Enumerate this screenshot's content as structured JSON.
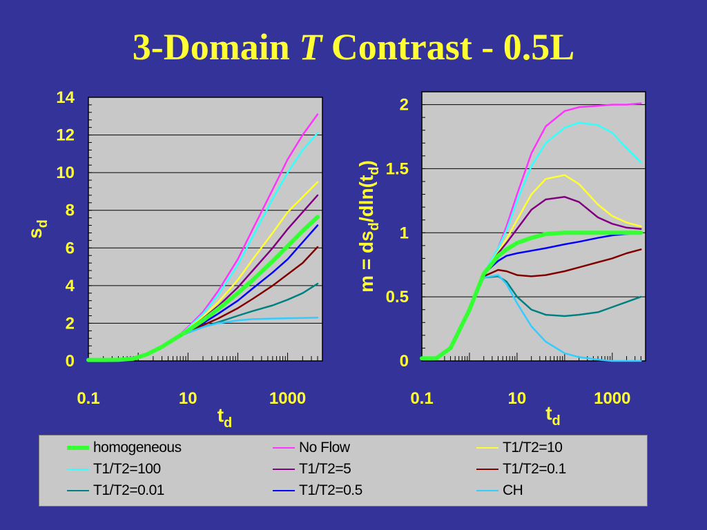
{
  "slide": {
    "title_part1": "3-Domain",
    "title_italic": "T",
    "title_part2": "Contrast - 0.5L"
  },
  "colors": {
    "background": "#333399",
    "plot_background": "#c8c8c8",
    "text": "#ffff33"
  },
  "legend": {
    "items": [
      {
        "label": "homogeneous",
        "color": "#33ff33",
        "width": 6
      },
      {
        "label": "No Flow",
        "color": "#ff33ff",
        "width": 2.5
      },
      {
        "label": "T1/T2=10",
        "color": "#ffff33",
        "width": 2.5
      },
      {
        "label": "T1/T2=100",
        "color": "#33ffff",
        "width": 2.5
      },
      {
        "label": "T1/T2=5",
        "color": "#800080",
        "width": 2.5
      },
      {
        "label": "T1/T2=0.1",
        "color": "#800000",
        "width": 2.5
      },
      {
        "label": "T1/T2=0.01",
        "color": "#008080",
        "width": 2.5
      },
      {
        "label": "T1/T2=0.5",
        "color": "#0000ff",
        "width": 2.5
      },
      {
        "label": "CH",
        "color": "#33ccff",
        "width": 2.5
      }
    ]
  },
  "chart_data": [
    {
      "type": "line",
      "xlabel_main": "t",
      "xlabel_sub": "d",
      "ylabel_main": "s",
      "ylabel_sub": "d",
      "xscale": "log",
      "xlim": [
        0.1,
        5000
      ],
      "ylim": [
        0,
        14
      ],
      "xticks": [
        0.1,
        10,
        1000
      ],
      "xtick_labels": [
        "0.1",
        "10",
        "1000"
      ],
      "yticks": [
        0,
        2,
        4,
        6,
        8,
        10,
        12,
        14
      ],
      "ytick_labels": [
        "0",
        "2",
        "4",
        "6",
        "8",
        "10",
        "12",
        "14"
      ],
      "grid": "horizontal",
      "series": [
        {
          "name": "No Flow",
          "x": [
            0.1,
            0.2,
            0.4,
            0.8,
            1.5,
            3,
            6,
            10,
            20,
            40,
            100,
            200,
            500,
            1000,
            2000,
            4000
          ],
          "y": [
            0.05,
            0.05,
            0.06,
            0.12,
            0.35,
            0.75,
            1.25,
            1.8,
            2.6,
            3.7,
            5.4,
            7.0,
            9.1,
            10.7,
            12.0,
            13.1
          ]
        },
        {
          "name": "T1/T2=100",
          "x": [
            0.1,
            0.2,
            0.4,
            0.8,
            1.5,
            3,
            6,
            10,
            20,
            40,
            100,
            200,
            500,
            1000,
            2000,
            4000
          ],
          "y": [
            0.05,
            0.05,
            0.06,
            0.12,
            0.35,
            0.75,
            1.25,
            1.75,
            2.5,
            3.5,
            5.1,
            6.6,
            8.6,
            10.0,
            11.2,
            12.1
          ]
        },
        {
          "name": "T1/T2=10",
          "x": [
            0.1,
            0.2,
            0.4,
            0.8,
            1.5,
            3,
            6,
            10,
            20,
            40,
            100,
            200,
            500,
            1000,
            2000,
            4000
          ],
          "y": [
            0.05,
            0.05,
            0.06,
            0.12,
            0.35,
            0.75,
            1.25,
            1.7,
            2.35,
            3.1,
            4.3,
            5.4,
            6.8,
            7.9,
            8.7,
            9.5
          ]
        },
        {
          "name": "T1/T2=5",
          "x": [
            0.1,
            0.2,
            0.4,
            0.8,
            1.5,
            3,
            6,
            10,
            20,
            40,
            100,
            200,
            500,
            1000,
            2000,
            4000
          ],
          "y": [
            0.05,
            0.05,
            0.06,
            0.12,
            0.35,
            0.75,
            1.25,
            1.68,
            2.25,
            2.9,
            3.9,
            4.8,
            6.0,
            7.0,
            7.9,
            8.8
          ]
        },
        {
          "name": "homogeneous",
          "x": [
            0.1,
            0.2,
            0.4,
            0.8,
            1.5,
            3,
            6,
            10,
            20,
            40,
            100,
            200,
            500,
            1000,
            2000,
            4000
          ],
          "y": [
            0.05,
            0.05,
            0.06,
            0.12,
            0.35,
            0.75,
            1.25,
            1.62,
            2.15,
            2.75,
            3.6,
            4.3,
            5.3,
            6.1,
            6.9,
            7.65
          ]
        },
        {
          "name": "T1/T2=0.5",
          "x": [
            0.1,
            0.2,
            0.4,
            0.8,
            1.5,
            3,
            6,
            10,
            20,
            40,
            100,
            200,
            500,
            1000,
            2000,
            4000
          ],
          "y": [
            0.05,
            0.05,
            0.06,
            0.12,
            0.35,
            0.75,
            1.25,
            1.58,
            2.0,
            2.5,
            3.2,
            3.85,
            4.7,
            5.4,
            6.3,
            7.2
          ]
        },
        {
          "name": "T1/T2=0.1",
          "x": [
            0.1,
            0.2,
            0.4,
            0.8,
            1.5,
            3,
            6,
            10,
            20,
            40,
            100,
            200,
            500,
            1000,
            2000,
            4000
          ],
          "y": [
            0.05,
            0.05,
            0.06,
            0.12,
            0.35,
            0.75,
            1.25,
            1.55,
            1.9,
            2.25,
            2.8,
            3.3,
            4.0,
            4.6,
            5.2,
            6.05
          ]
        },
        {
          "name": "T1/T2=0.01",
          "x": [
            0.1,
            0.2,
            0.4,
            0.8,
            1.5,
            3,
            6,
            10,
            20,
            40,
            100,
            200,
            500,
            1000,
            2000,
            4000
          ],
          "y": [
            0.05,
            0.05,
            0.06,
            0.12,
            0.35,
            0.75,
            1.25,
            1.5,
            1.8,
            2.05,
            2.4,
            2.65,
            2.95,
            3.25,
            3.6,
            4.1
          ]
        },
        {
          "name": "CH",
          "x": [
            0.1,
            0.2,
            0.4,
            0.8,
            1.5,
            3,
            6,
            10,
            20,
            40,
            100,
            200,
            500,
            1000,
            2000,
            4000
          ],
          "y": [
            0.05,
            0.05,
            0.06,
            0.12,
            0.35,
            0.75,
            1.25,
            1.5,
            1.8,
            2.0,
            2.15,
            2.22,
            2.25,
            2.27,
            2.28,
            2.3
          ]
        }
      ]
    },
    {
      "type": "line",
      "xlabel_main": "t",
      "xlabel_sub": "d",
      "ylabel_main": "m = ds",
      "ylabel_sub": "d",
      "ylabel_mid": "/dln(t",
      "ylabel_sub2": "d",
      "ylabel_end": ")",
      "xscale": "log",
      "xlim": [
        0.1,
        5000
      ],
      "ylim": [
        0,
        2.1
      ],
      "xticks": [
        0.1,
        10,
        1000
      ],
      "xtick_labels": [
        "0.1",
        "10",
        "1000"
      ],
      "yticks": [
        0,
        0.5,
        1,
        1.5,
        2
      ],
      "ytick_labels": [
        "0",
        "0.5",
        "1",
        "1.5",
        "2"
      ],
      "grid": "horizontal",
      "series": [
        {
          "name": "No Flow",
          "x": [
            0.1,
            0.2,
            0.4,
            1,
            2,
            4,
            6,
            10,
            20,
            40,
            100,
            200,
            500,
            1000,
            2000,
            4000
          ],
          "y": [
            0.02,
            0.02,
            0.1,
            0.4,
            0.68,
            0.88,
            1.05,
            1.3,
            1.62,
            1.83,
            1.95,
            1.98,
            1.99,
            2.0,
            2.0,
            2.01
          ]
        },
        {
          "name": "T1/T2=100",
          "x": [
            0.1,
            0.2,
            0.4,
            1,
            2,
            4,
            6,
            10,
            20,
            40,
            100,
            200,
            500,
            1000,
            2000,
            4000
          ],
          "y": [
            0.02,
            0.02,
            0.1,
            0.4,
            0.68,
            0.88,
            1.02,
            1.25,
            1.52,
            1.7,
            1.82,
            1.86,
            1.84,
            1.78,
            1.66,
            1.55
          ]
        },
        {
          "name": "T1/T2=10",
          "x": [
            0.1,
            0.2,
            0.4,
            1,
            2,
            4,
            6,
            10,
            20,
            40,
            100,
            200,
            500,
            1000,
            2000,
            4000
          ],
          "y": [
            0.02,
            0.02,
            0.1,
            0.4,
            0.68,
            0.85,
            0.95,
            1.1,
            1.3,
            1.42,
            1.45,
            1.38,
            1.22,
            1.13,
            1.08,
            1.05
          ]
        },
        {
          "name": "T1/T2=5",
          "x": [
            0.1,
            0.2,
            0.4,
            1,
            2,
            4,
            6,
            10,
            20,
            40,
            100,
            200,
            500,
            1000,
            2000,
            4000
          ],
          "y": [
            0.02,
            0.02,
            0.1,
            0.4,
            0.68,
            0.84,
            0.92,
            1.03,
            1.18,
            1.26,
            1.28,
            1.24,
            1.12,
            1.07,
            1.04,
            1.03
          ]
        },
        {
          "name": "homogeneous",
          "x": [
            0.1,
            0.2,
            0.4,
            1,
            2,
            4,
            6,
            10,
            20,
            40,
            100,
            200,
            500,
            1000,
            2000,
            4000
          ],
          "y": [
            0.02,
            0.02,
            0.1,
            0.4,
            0.68,
            0.82,
            0.87,
            0.92,
            0.96,
            0.99,
            1.0,
            1.0,
            1.0,
            1.0,
            1.0,
            1.0
          ]
        },
        {
          "name": "T1/T2=0.5",
          "x": [
            0.1,
            0.2,
            0.4,
            1,
            2,
            4,
            6,
            10,
            20,
            40,
            100,
            200,
            500,
            1000,
            2000,
            4000
          ],
          "y": [
            0.02,
            0.02,
            0.1,
            0.4,
            0.68,
            0.78,
            0.82,
            0.84,
            0.86,
            0.88,
            0.91,
            0.93,
            0.96,
            0.98,
            0.99,
            1.0
          ]
        },
        {
          "name": "T1/T2=0.1",
          "x": [
            0.1,
            0.2,
            0.4,
            1,
            2,
            4,
            6,
            10,
            20,
            40,
            100,
            200,
            500,
            1000,
            2000,
            4000
          ],
          "y": [
            0.02,
            0.02,
            0.1,
            0.4,
            0.66,
            0.71,
            0.7,
            0.67,
            0.66,
            0.67,
            0.7,
            0.73,
            0.77,
            0.8,
            0.84,
            0.87
          ]
        },
        {
          "name": "T1/T2=0.01",
          "x": [
            0.1,
            0.2,
            0.4,
            1,
            2,
            4,
            6,
            10,
            20,
            40,
            100,
            200,
            500,
            1000,
            2000,
            4000
          ],
          "y": [
            0.02,
            0.02,
            0.1,
            0.4,
            0.65,
            0.66,
            0.62,
            0.5,
            0.4,
            0.36,
            0.35,
            0.36,
            0.38,
            0.42,
            0.46,
            0.5
          ]
        },
        {
          "name": "CH",
          "x": [
            0.1,
            0.2,
            0.4,
            1,
            2,
            4,
            6,
            10,
            20,
            40,
            100,
            200,
            500,
            1000,
            2000,
            4000
          ],
          "y": [
            0.02,
            0.02,
            0.1,
            0.4,
            0.65,
            0.67,
            0.6,
            0.45,
            0.27,
            0.15,
            0.06,
            0.03,
            0.01,
            0.0,
            0.0,
            0.0
          ]
        }
      ]
    }
  ]
}
